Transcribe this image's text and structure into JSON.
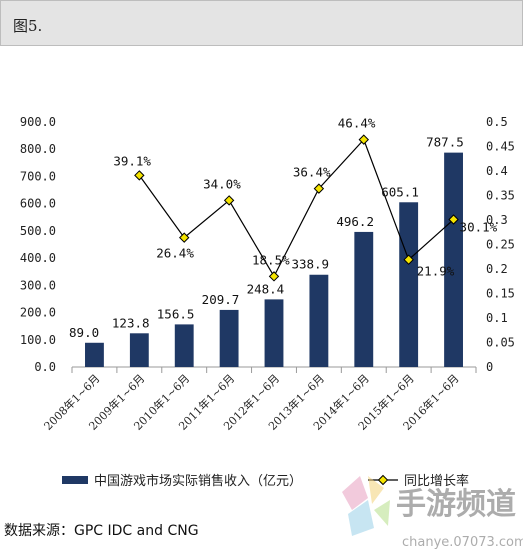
{
  "header": {
    "title": "图5."
  },
  "source": "数据来源：GPC IDC and CNG",
  "watermark": {
    "brand": "手游频道",
    "site": "chanye.07073.com"
  },
  "chart_data": {
    "type": "bar+line",
    "categories": [
      "2008年1~6月",
      "2009年1~6月",
      "2010年1~6月",
      "2011年1~6月",
      "2012年1~6月",
      "2013年1~6月",
      "2014年1~6月",
      "2015年1~6月",
      "2016年1~6月"
    ],
    "series": [
      {
        "name": "中国游戏市场实际销售收入（亿元）",
        "type": "bar",
        "axis": "left",
        "color": "#1f3864",
        "values": [
          89.0,
          123.8,
          156.5,
          209.7,
          248.4,
          338.9,
          496.2,
          605.1,
          787.5
        ],
        "labels": [
          "89.0",
          "123.8",
          "156.5",
          "209.7",
          "248.4",
          "338.9",
          "496.2",
          "605.1",
          "787.5"
        ]
      },
      {
        "name": "同比增长率",
        "type": "line",
        "axis": "right",
        "color": "#000000",
        "marker_color": "#f5e400",
        "values": [
          null,
          0.391,
          0.264,
          0.34,
          0.185,
          0.364,
          0.464,
          0.219,
          0.301
        ],
        "labels": [
          "",
          "39.1%",
          "26.4%",
          "34.0%",
          "18.5%",
          "36.4%",
          "46.4%",
          "21.9%",
          "30.1%"
        ]
      }
    ],
    "y_left": {
      "range": [
        0,
        900
      ],
      "ticks": [
        "0.0",
        "100.0",
        "200.0",
        "300.0",
        "400.0",
        "500.0",
        "600.0",
        "700.0",
        "800.0",
        "900.0"
      ]
    },
    "y_right": {
      "range": [
        0,
        0.5
      ],
      "ticks": [
        "0",
        "0.05",
        "0.1",
        "0.15",
        "0.2",
        "0.25",
        "0.3",
        "0.35",
        "0.4",
        "0.45",
        "0.5"
      ]
    },
    "grid": false,
    "legend_position": "bottom"
  }
}
